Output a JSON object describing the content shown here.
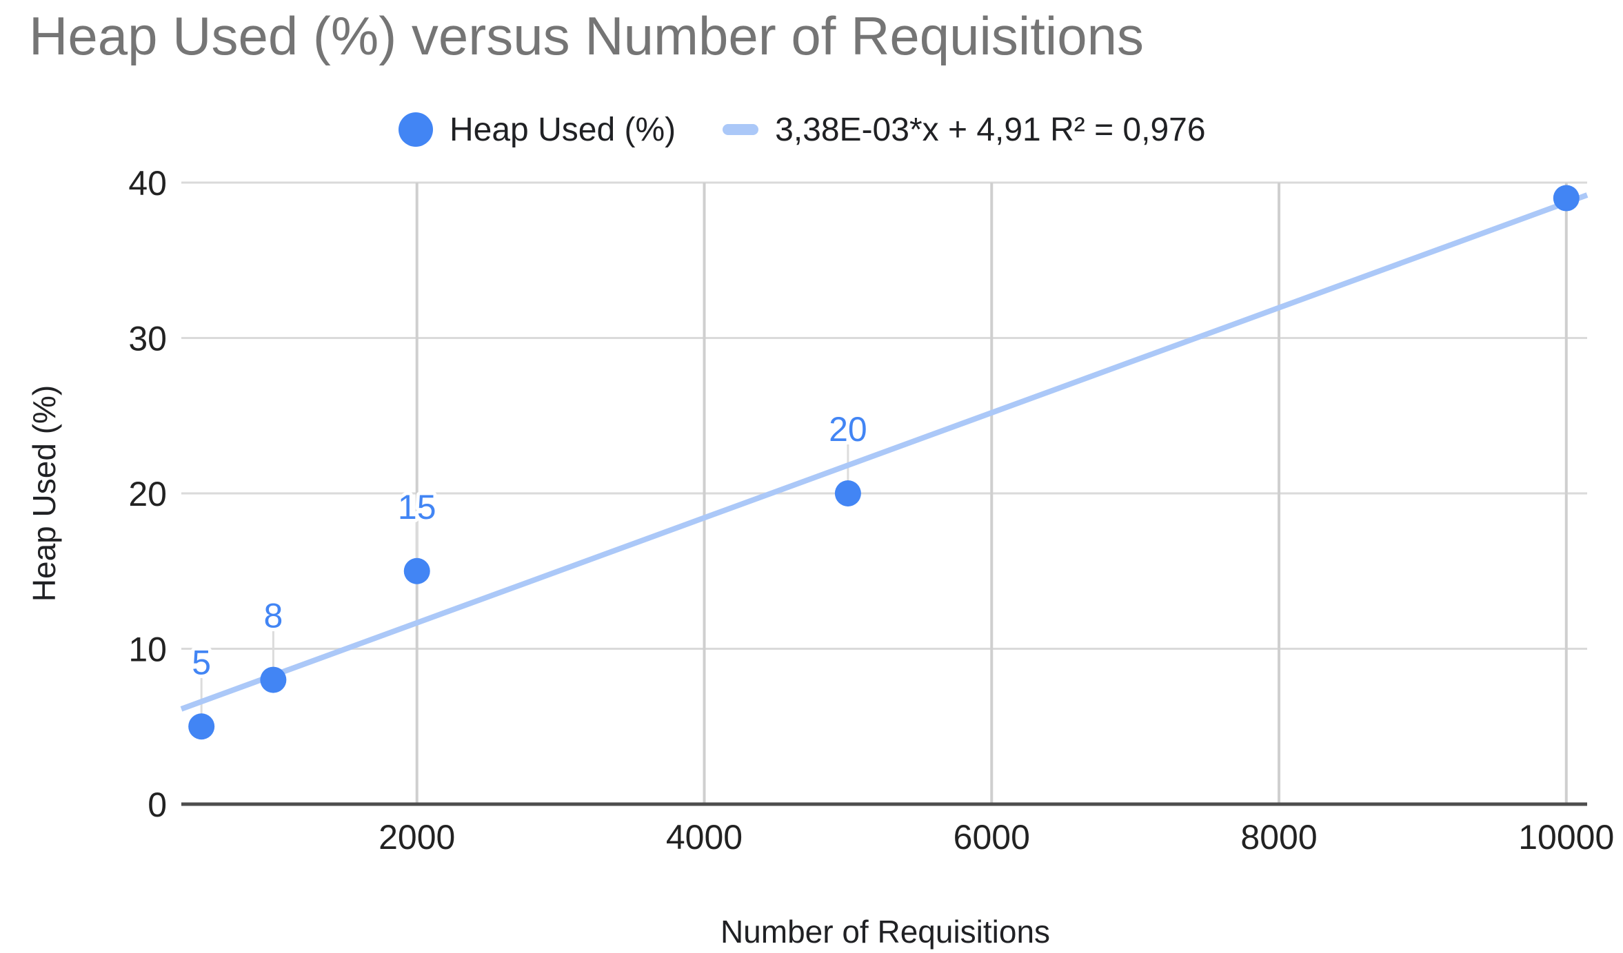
{
  "chart_data": {
    "type": "scatter",
    "title": "Heap Used (%) versus Number of Requisitions",
    "xlabel": "Number of Requisitions",
    "ylabel": "Heap Used (%)",
    "series": [
      {
        "name": "Heap Used (%)",
        "points": [
          [
            500,
            5
          ],
          [
            1000,
            8
          ],
          [
            2000,
            15
          ],
          [
            5000,
            20
          ],
          [
            10000,
            39
          ]
        ],
        "point_labels": [
          "5",
          "8",
          "15",
          "20",
          ""
        ]
      }
    ],
    "trendline": {
      "type": "linear",
      "slope": 0.00338,
      "intercept": 4.91,
      "r2": 0.976,
      "label": "3,38E-03*x + 4,91 R² = 0,976"
    },
    "x_ticks": [
      2000,
      4000,
      6000,
      8000,
      10000
    ],
    "y_ticks": [
      0,
      10,
      20,
      30,
      40
    ],
    "xlim": [
      360,
      10145
    ],
    "ylim": [
      0,
      40
    ],
    "grid": true,
    "legend_position": "top",
    "colors": {
      "series": "#4285f4",
      "data_label": "#4285f4",
      "trendline": "#abc8f8",
      "title": "#757575",
      "axis_text": "#202124",
      "tick_text": "#222222",
      "gridline_h": "#dadada",
      "gridline_v": "#cfcfcf",
      "axis_line": "#4d4d4d",
      "leader": "#dcdcdc",
      "background": "#ffffff"
    }
  }
}
